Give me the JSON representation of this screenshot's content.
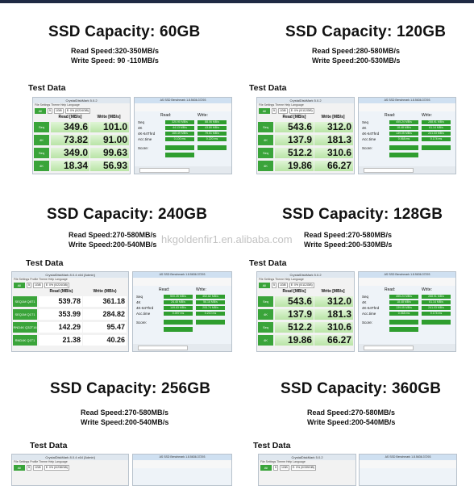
{
  "watermark": "hkgoldenfir1.en.alibaba.com",
  "cards": [
    {
      "title": "SSD Capacity: 60GB",
      "read": "Read Speed:320-350MB/s",
      "write": "Write Speed: 90 -110MB/s",
      "test": "Test Data",
      "cdm": {
        "window_title": "CrystalDiskMark 5.0.2",
        "menu": "File  Settings  Theme  Help  Language",
        "btn": "All",
        "count": "5",
        "size": "1GiB",
        "drive": "E: 0% (0/224GiB)",
        "col_read": "Read [MB/s]",
        "col_write": "Write [MB/s]",
        "rows": [
          {
            "label": "Seq",
            "read": "349.6",
            "write": "101.0"
          },
          {
            "label": "4K",
            "read": "73.82",
            "write": "91.00"
          },
          {
            "label": "Seq",
            "read": "349.0",
            "write": "99.63"
          },
          {
            "label": "4K",
            "read": "18.34",
            "write": "56.93"
          }
        ]
      },
      "asd": {
        "window_title": "AS SSD Benchmark 1.8.5636.37293",
        "col_read": "Read:",
        "col_write": "Write:",
        "rows": [
          {
            "name": "Seq",
            "read": "320.90 MB/s",
            "write": "88.06 MB/s"
          },
          {
            "name": "4K",
            "read": "44.13 MB/s",
            "write": "43.80 MB/s"
          },
          {
            "name": "4K-64Thrd",
            "read": "165.49 MB/s",
            "write": "79.51 MB/s"
          },
          {
            "name": "Acc.time",
            "read": "0.100 ms",
            "write": "0.220 ms"
          }
        ],
        "score_label": "Score:",
        "score_read": "",
        "score_write": "",
        "total": ""
      }
    },
    {
      "title": "SSD Capacity: 120GB",
      "read": "Read Speed:280-580MB/s",
      "write": "Write Speed:200-530MB/s",
      "test": "Test Data",
      "cdm": {
        "window_title": "CrystalDiskMark 5.0.2",
        "menu": "File  Settings  Theme  Help  Language",
        "btn": "All",
        "count": "5",
        "size": "1GiB",
        "drive": "E: 0% (0/112GiB)",
        "col_read": "Read [MB/s]",
        "col_write": "Write [MB/s]",
        "rows": [
          {
            "label": "Seq",
            "read": "543.6",
            "write": "312.0"
          },
          {
            "label": "4K",
            "read": "137.9",
            "write": "181.3"
          },
          {
            "label": "Seq",
            "read": "512.2",
            "write": "310.6"
          },
          {
            "label": "4K",
            "read": "19.86",
            "write": "66.27"
          }
        ]
      },
      "asd": {
        "window_title": "AS SSD Benchmark 1.8.5636.37293",
        "col_read": "Read:",
        "col_write": "Write:",
        "rows": [
          {
            "name": "Seq",
            "read": "455.24 MB/s",
            "write": "288.91 MB/s"
          },
          {
            "name": "4K",
            "read": "18.48 MB/s",
            "write": "61.14 MB/s"
          },
          {
            "name": "4K-64Thrd",
            "read": "139.05 MB/s",
            "write": "241.03 MB/s"
          },
          {
            "name": "Acc.time",
            "read": "0.068 ms",
            "write": "0.174 ms"
          }
        ],
        "score_label": "Score:",
        "score_read": "",
        "score_write": "",
        "total": ""
      }
    },
    {
      "title": "SSD Capacity: 240GB",
      "read": "Read Speed:270-580MB/s",
      "write": "Write Speed:200-540MB/s",
      "test": "Test Data",
      "cdm": {
        "window_title": "CrystalDiskMark 8.0.4 x64 [Admin]",
        "menu": "File  Settings  Profile  Theme  Help  Language",
        "btn": "All",
        "count": "5",
        "size": "1GiB",
        "drive": "E: 0% (0/224GiB)",
        "col_read": "Read (MB/s)",
        "col_write": "Write (MB/s)",
        "rows": [
          {
            "label": "SEQ1M Q8T1",
            "read": "539.78",
            "write": "361.18"
          },
          {
            "label": "SEQ1M Q1T1",
            "read": "353.99",
            "write": "284.82"
          },
          {
            "label": "RND4K Q32T16",
            "read": "142.29",
            "write": "95.47"
          },
          {
            "label": "RND4K Q1T1",
            "read": "21.38",
            "write": "40.26"
          }
        ]
      },
      "asd": {
        "window_title": "AS SSD Benchmark 1.8.5636.37293",
        "col_read": "Read:",
        "col_write": "Write:",
        "rows": [
          {
            "name": "Seq",
            "read": "500.25 MB/s",
            "write": "452.62 MB/s"
          },
          {
            "name": "4K",
            "read": "24.45 MB/s",
            "write": "56.16 MB/s"
          },
          {
            "name": "4K-64Thrd",
            "read": "149.63 MB/s",
            "write": "205.74 MB/s"
          },
          {
            "name": "Acc.time",
            "read": "0.097 ms",
            "write": "0.210 ms"
          }
        ],
        "score_label": "Score:",
        "score_read": "",
        "score_write": "",
        "total": ""
      }
    },
    {
      "title": "SSD Capacity: 128GB",
      "read": "Read Speed:270-580MB/s",
      "write": "Write Speed:200-530MB/s",
      "test": "Test Data",
      "cdm": {
        "window_title": "CrystalDiskMark 5.0.2",
        "menu": "File  Settings  Theme  Help  Language",
        "btn": "All",
        "count": "5",
        "size": "1GiB",
        "drive": "E: 0% (0/112GiB)",
        "col_read": "Read [MB/s]",
        "col_write": "Write [MB/s]",
        "rows": [
          {
            "label": "Seq",
            "read": "543.6",
            "write": "312.0"
          },
          {
            "label": "4K",
            "read": "137.9",
            "write": "181.3"
          },
          {
            "label": "Seq",
            "read": "512.2",
            "write": "310.6"
          },
          {
            "label": "4K",
            "read": "19.86",
            "write": "66.27"
          }
        ]
      },
      "asd": {
        "window_title": "AS SSD Benchmark 1.8.5636.37293",
        "col_read": "Read:",
        "col_write": "Write:",
        "rows": [
          {
            "name": "Seq",
            "read": "455.24 MB/s",
            "write": "288.91 MB/s"
          },
          {
            "name": "4K",
            "read": "18.48 MB/s",
            "write": "61.14 MB/s"
          },
          {
            "name": "4K-64Thrd",
            "read": "139.05 MB/s",
            "write": "241.03 MB/s"
          },
          {
            "name": "Acc.time",
            "read": "0.068 ms",
            "write": "0.174 ms"
          }
        ],
        "score_label": "Score:",
        "score_read": "",
        "score_write": "",
        "total": ""
      }
    },
    {
      "title": "SSD Capacity: 256GB",
      "read": "Read Speed:270-580MB/s",
      "write": "Write Speed:200-540MB/s",
      "test": "Test Data",
      "cdm": {
        "window_title": "CrystalDiskMark 8.0.4 x64 [Admin]",
        "menu": "File  Settings  Profile  Theme  Help  Language",
        "btn": "All",
        "count": "5",
        "size": "1GiB",
        "drive": "E: 0% (0/238GiB)",
        "col_read": "Read (MB/s)",
        "col_write": "Write (MB/s)",
        "rows": []
      },
      "asd": {
        "window_title": "AS SSD Benchmark 1.8.5636.37293",
        "col_read": "",
        "col_write": "",
        "rows": [],
        "score_label": "",
        "score_read": "",
        "score_write": "",
        "total": ""
      }
    },
    {
      "title": "SSD Capacity: 360GB",
      "read": "Read Speed:270-580MB/s",
      "write": "Write Speed:200-540MB/s",
      "test": "Test Data",
      "cdm": {
        "window_title": "CrystalDiskMark 5.0.2",
        "menu": "File  Settings  Theme  Help  Language",
        "btn": "All",
        "count": "5",
        "size": "1GiB",
        "drive": "E: 0% (0/335GiB)",
        "col_read": "Read [MB/s]",
        "col_write": "Write [MB/s]",
        "rows": []
      },
      "asd": {
        "window_title": "AS SSD Benchmark 1.8.5636.37293",
        "col_read": "",
        "col_write": "",
        "rows": [],
        "score_label": "",
        "score_read": "",
        "score_write": "",
        "total": ""
      }
    }
  ]
}
